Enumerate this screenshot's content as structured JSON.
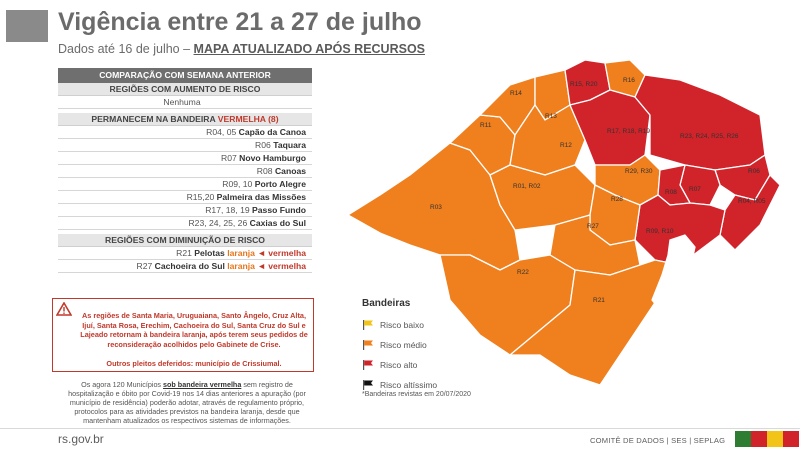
{
  "header": {
    "title": "Vigência entre 21 a 27 de julho",
    "subtitle_prefix": "Dados até 16 de julho –",
    "subtitle_highlight": "MAPA ATUALIZADO APÓS RECURSOS"
  },
  "comparison": {
    "heading": "COMPARAÇÃO COM SEMANA ANTERIOR",
    "increase": {
      "heading": "REGIÕES COM AUMENTO DE RISCO",
      "rows": [
        "Nenhuma"
      ]
    },
    "remain": {
      "heading_prefix": "PERMANECEM NA BANDEIRA",
      "heading_flag": "VERMELHA (8)",
      "rows": [
        {
          "codes": "R04, 05",
          "name": "Capão da Canoa"
        },
        {
          "codes": "R06",
          "name": "Taquara"
        },
        {
          "codes": "R07",
          "name": "Novo Hamburgo"
        },
        {
          "codes": "R08",
          "name": "Canoas"
        },
        {
          "codes": "R09, 10",
          "name": "Porto Alegre"
        },
        {
          "codes": "R15,20",
          "name": "Palmeira das Missões"
        },
        {
          "codes": "R17, 18, 19",
          "name": "Passo Fundo"
        },
        {
          "codes": "R23, 24, 25, 26",
          "name": "Caxias do Sul"
        }
      ]
    },
    "decrease": {
      "heading": "REGIÕES COM DIMINUIÇÃO DE RISCO",
      "rows": [
        {
          "codes": "R21",
          "name": "Pelotas",
          "from": "laranja",
          "arrow": "◄",
          "to": "vermelha"
        },
        {
          "codes": "R27",
          "name": "Cachoeira do Sul",
          "from": "laranja",
          "arrow": "◄",
          "to": "vermelha"
        }
      ]
    }
  },
  "alert": {
    "icon": "warning-triangle-icon",
    "text": "As regiões de Santa Maria, Uruguaiana, Santo Ângelo, Cruz Alta, Ijuí, Santa Rosa, Erechim, Cachoeira do Sul, Santa Cruz do Sul e Lajeado retornam à bandeira laranja, após terem seus pedidos de reconsideração acolhidos pelo Gabinete de Crise.",
    "text2": "Outros pleitos deferidos: município de Crissiumal."
  },
  "note": {
    "prefix": "Os agora 120 Municípios",
    "bold": "sob bandeira vermelha",
    "suffix": "sem registro de hospitalização e óbito por Covid-19 nos 14 dias anteriores a apuração (por município de residência) poderão adotar, através de regulamento próprio, protocolos para as atividades previstos na bandeira laranja, desde que mantenham atualizados os respectivos sistemas de informações."
  },
  "legend": {
    "title": "Bandeiras",
    "items": [
      {
        "label": "Risco baixo",
        "color": "#f2c418",
        "icon": "flag-icon"
      },
      {
        "label": "Risco médio",
        "color": "#f07f1d",
        "icon": "flag-icon"
      },
      {
        "label": "Risco alto",
        "color": "#d1232a",
        "icon": "flag-icon"
      },
      {
        "label": "Risco altíssimo",
        "color": "#111111",
        "icon": "flag-icon"
      }
    ],
    "revised": "*Bandeiras revistas em 20/07/2020"
  },
  "map": {
    "colors": {
      "orange": "#f07f1d",
      "red": "#d1232a",
      "border": "#ffffff"
    },
    "labels": {
      "r15r20": "R15, R20",
      "r16": "R16",
      "r14": "R14",
      "r13": "R13",
      "r11": "R11",
      "r17": "R17, R18, R19",
      "r23": "R23, R24, R25, R26",
      "r12": "R12",
      "r01": "R01, R02",
      "r29": "R29, R30",
      "r06": "R06",
      "r07": "R07",
      "r08": "R08",
      "r28": "R28",
      "r04": "R04, R05",
      "r03": "R03",
      "r09": "R09, R10",
      "r27": "R27",
      "r22": "R22",
      "r21": "R21"
    }
  },
  "footer": {
    "site": "rs.gov.br",
    "credits": "COMITÊ DE DADOS | SES | SEPLAG",
    "stripe_colors": [
      "#2e7d32",
      "#d1232a",
      "#f2c418",
      "#d1232a"
    ]
  }
}
